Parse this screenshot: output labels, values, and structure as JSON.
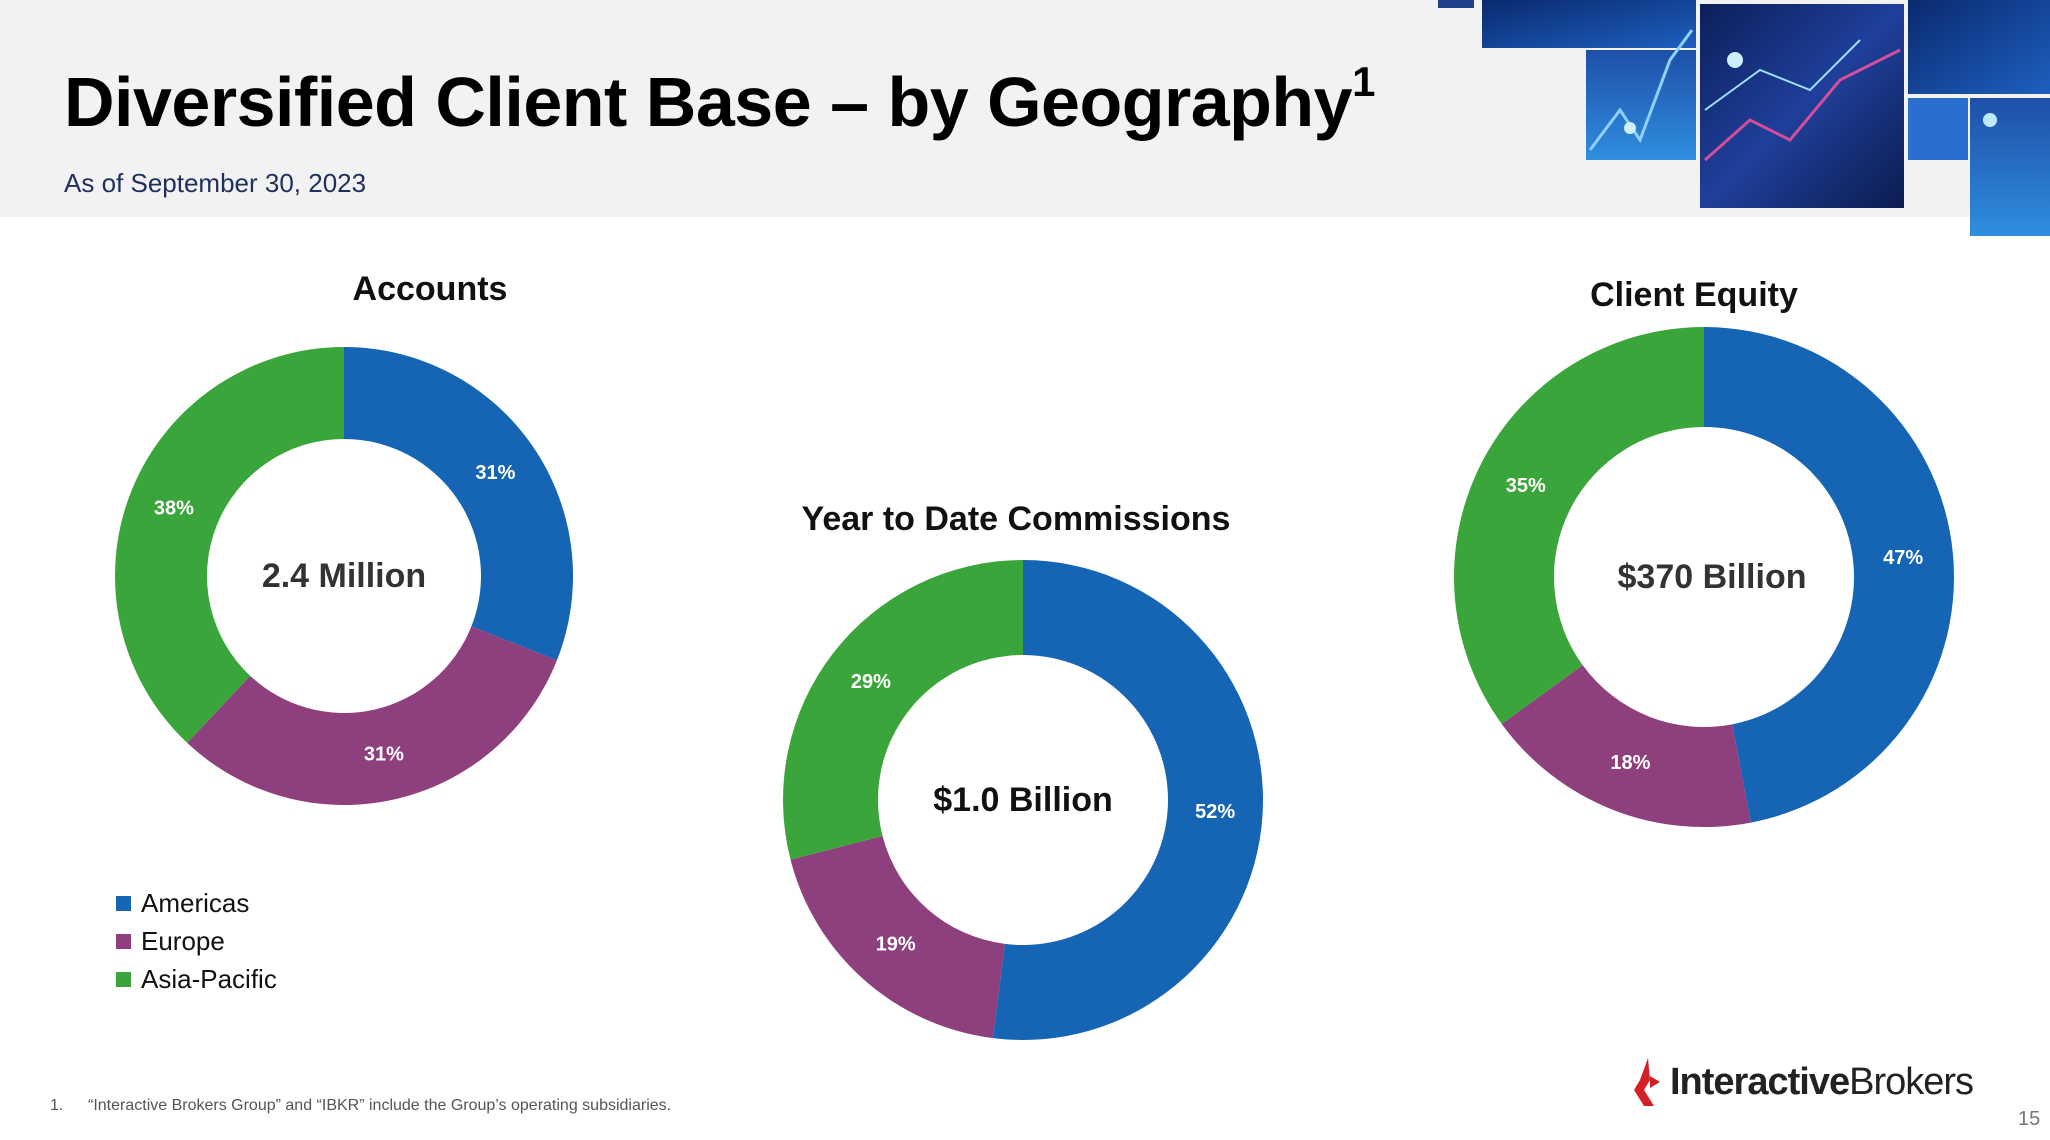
{
  "header": {
    "title": "Diversified Client Base – by Geography",
    "title_sup": "1",
    "subtitle": "As of September 30, 2023"
  },
  "colors": {
    "americas": "#1565b4",
    "europe": "#8e3f7d",
    "asia_pacific": "#3aa53a"
  },
  "chart_data": [
    {
      "type": "pie",
      "title": "Accounts",
      "center_label": "2.4 Million",
      "categories": [
        "Americas",
        "Europe",
        "Asia-Pacific"
      ],
      "values": [
        31,
        31,
        38
      ],
      "labels": [
        "31%",
        "31%",
        "38%"
      ]
    },
    {
      "type": "pie",
      "title": "Year to Date Commissions",
      "center_label": "$1.0 Billion",
      "categories": [
        "Americas",
        "Europe",
        "Asia-Pacific"
      ],
      "values": [
        52,
        19,
        29
      ],
      "labels": [
        "52%",
        "19%",
        "29%"
      ]
    },
    {
      "type": "pie",
      "title": "Client Equity",
      "center_label": "$370 Billion",
      "categories": [
        "Americas",
        "Europe",
        "Asia-Pacific"
      ],
      "values": [
        47,
        18,
        35
      ],
      "labels": [
        "47%",
        "18%",
        "35%"
      ]
    }
  ],
  "legend": {
    "items": [
      {
        "label": "Americas",
        "color": "#1565b4"
      },
      {
        "label": "Europe",
        "color": "#8e3f7d"
      },
      {
        "label": "Asia-Pacific",
        "color": "#3aa53a"
      }
    ]
  },
  "footnote": {
    "number": "1.",
    "text": "“Interactive Brokers Group” and “IBKR” include the Group’s operating subsidiaries."
  },
  "logo": {
    "part1": "Interactive",
    "part2": "Brokers"
  },
  "page_number": "15"
}
